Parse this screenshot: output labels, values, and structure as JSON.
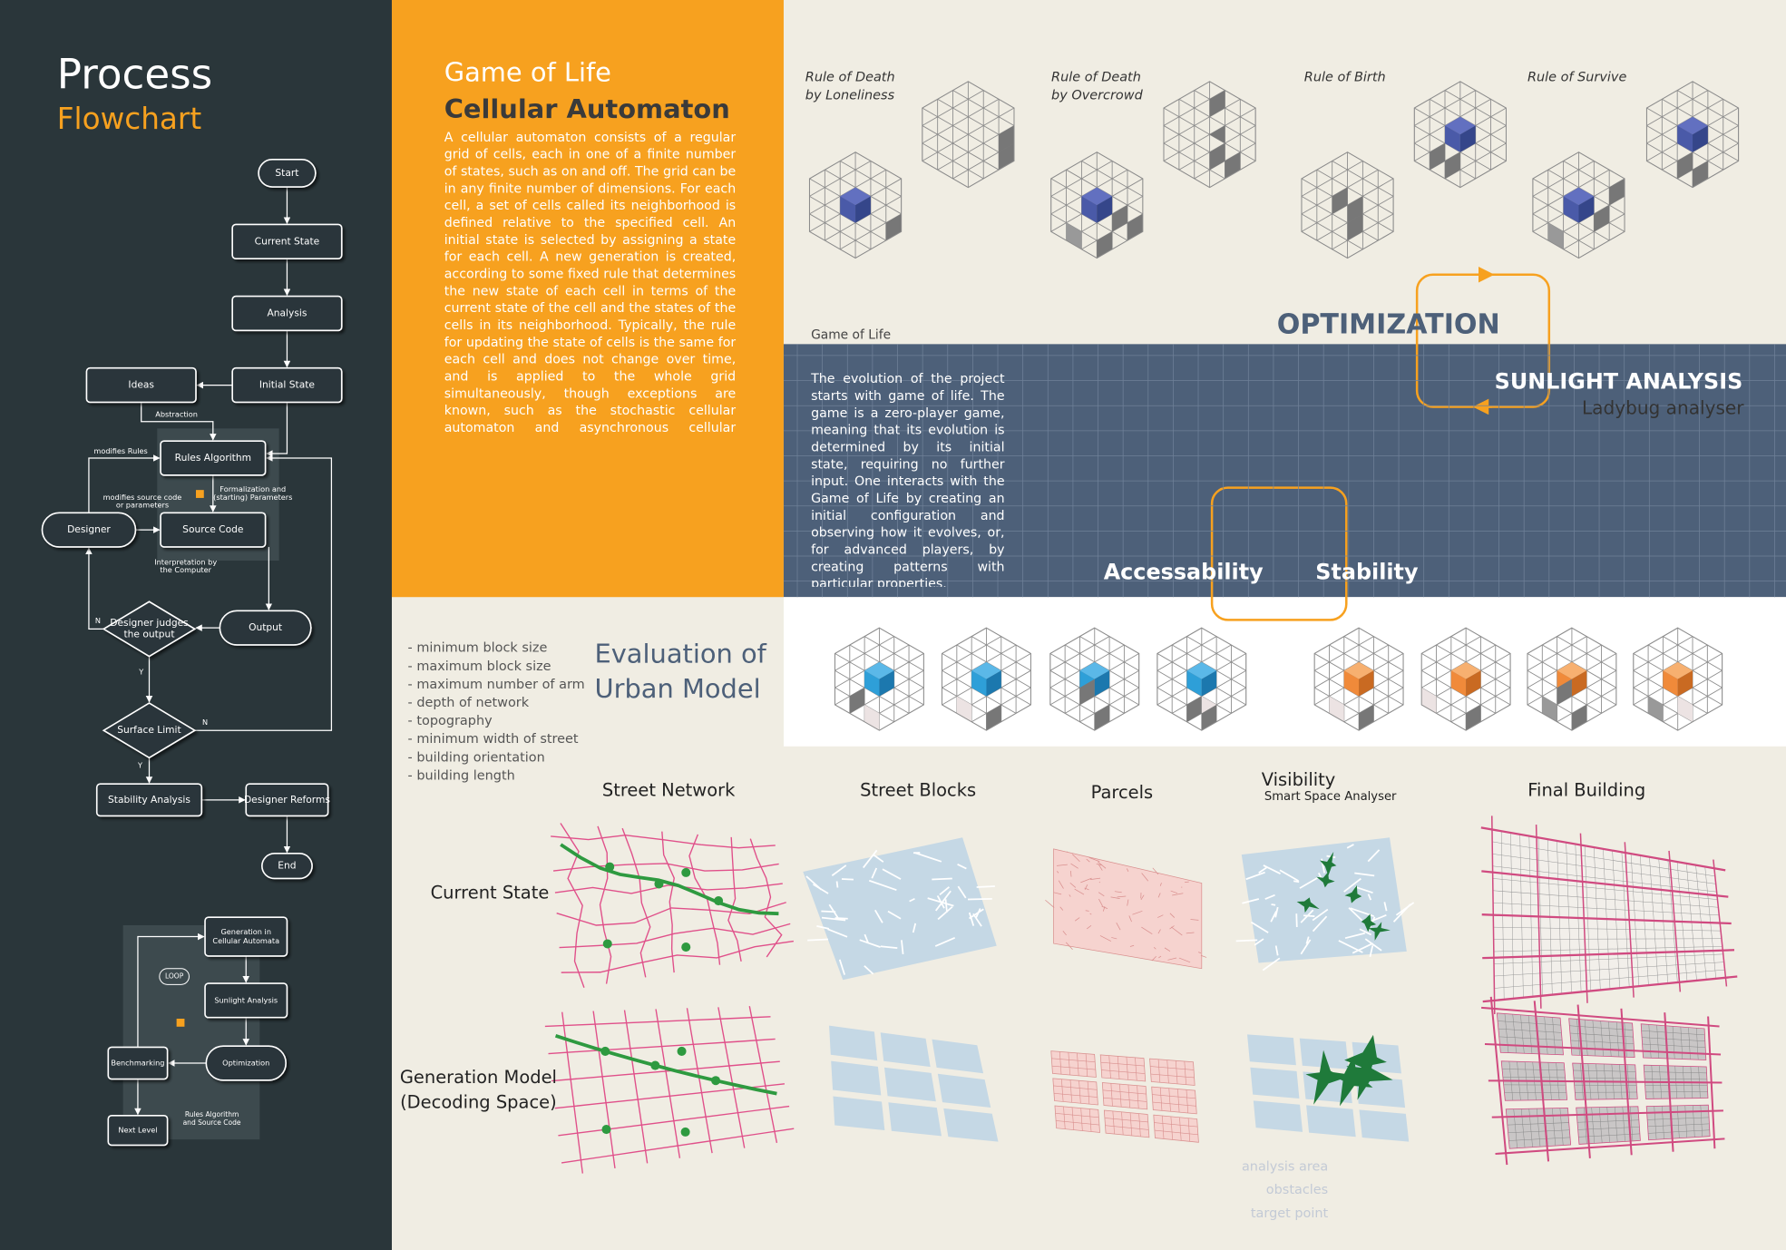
{
  "sidebar": {
    "title": "Process",
    "subtitle": "Flowchart"
  },
  "flowchart": {
    "nodes": [
      {
        "label": [
          "Start"
        ]
      },
      {
        "label": [
          "Current State"
        ]
      },
      {
        "label": [
          "Analysis"
        ]
      },
      {
        "label": [
          "Initial State"
        ]
      },
      {
        "label": [
          "Ideas"
        ]
      },
      {
        "label": [
          "Rules Algorithm"
        ]
      },
      {
        "label": [
          "Source Code"
        ]
      },
      {
        "label": [
          "Designer"
        ]
      },
      {
        "label": [
          "Output"
        ]
      },
      {
        "label": [
          "Designer judges",
          "the output"
        ]
      },
      {
        "label": [
          "Surface Limit"
        ]
      },
      {
        "label": [
          "Stability Analysis"
        ]
      },
      {
        "label": [
          "Designer Reforms"
        ]
      },
      {
        "label": [
          "End"
        ]
      }
    ],
    "edge_labels": [
      [
        "Abstraction"
      ],
      [
        "modifies Rules"
      ],
      [
        "modifies source code",
        "or parameters"
      ],
      [
        "Formalization and",
        "(starting) Parameters"
      ],
      [
        "Interpretation by",
        "the Computer"
      ],
      [
        "N"
      ],
      [
        "Y"
      ],
      [
        "N"
      ],
      [
        "Y"
      ]
    ]
  },
  "loop_flowchart": {
    "nodes": [
      {
        "label": [
          "Generation in",
          "Cellular Automata"
        ]
      },
      {
        "label": [
          "Sunlight Analysis"
        ]
      },
      {
        "label": [
          "Optimization"
        ]
      },
      {
        "label": [
          "Benchmarking"
        ]
      },
      {
        "label": [
          "Next Level"
        ]
      }
    ],
    "labels": [
      [
        "LOOP"
      ],
      [
        "Rules Algorithm",
        "and Source Code"
      ]
    ]
  },
  "game_of_life": {
    "title": "Game of Life",
    "subtitle": "Cellular Automaton",
    "text": "A cellular automaton consists of a regular grid of cells, each in one of a finite number of states, such as on and off. The grid can be in any finite number of dimensions. For each cell, a set of cells called its neighborhood is defined relative to the specified cell. An initial state is selected by assigning a state for each cell. A new generation is created, according to some fixed rule that determines the new state of each cell in terms of the current state of the cell and the states of the cells in its neighborhood. Typically, the rule for updating the state of cells is the same for each cell and does not change over time, and is applied to the whole grid simultaneously, though exceptions are known, such as the stochastic cellular automaton and asynchronous cellular automaton."
  },
  "rules": [
    {
      "label": [
        "Rule of Death",
        "by Loneliness"
      ]
    },
    {
      "label": [
        "Rule of Death",
        "by Overcrowd"
      ]
    },
    {
      "label": [
        "Rule of Birth"
      ]
    },
    {
      "label": [
        "Rule of Survive"
      ]
    }
  ],
  "evolution": {
    "heading": "Game of Life",
    "text": "The evolution of the project starts with game of life. The game is a zero-player game, meaning that its evolution is determined by its initial state, requiring no further input. One interacts with the Game of Life by creating an initial configuration and observing how it evolves, or, for advanced players, by creating patterns with particular properties."
  },
  "optimization": {
    "title": "OPTIMIZATION",
    "sunlight": "SUNLIGHT ANALYSIS",
    "sunlight_tool": "Ladybug analyser",
    "accessability": "Accessability",
    "stability": "Stability"
  },
  "evaluation": {
    "title": [
      "Evaluation of",
      "Urban Model"
    ],
    "criteria": [
      "- minimum block size",
      "- maximum block size",
      "- maximum number of arm",
      "- depth of network",
      "- topography",
      "- minimum width of street",
      "- building orientation",
      "- building length"
    ]
  },
  "matrix": {
    "columns": [
      {
        "label": "Street Network"
      },
      {
        "label": "Street Blocks"
      },
      {
        "label": "Parcels"
      },
      {
        "label": "Visibility",
        "sublabel": "Smart Space Analyser"
      },
      {
        "label": "Final Building"
      }
    ],
    "rows": [
      [
        "Current State"
      ],
      [
        "Generation Model",
        "(Decoding Space)"
      ]
    ],
    "legend": [
      "analysis area",
      "obstacles",
      "target point"
    ]
  }
}
